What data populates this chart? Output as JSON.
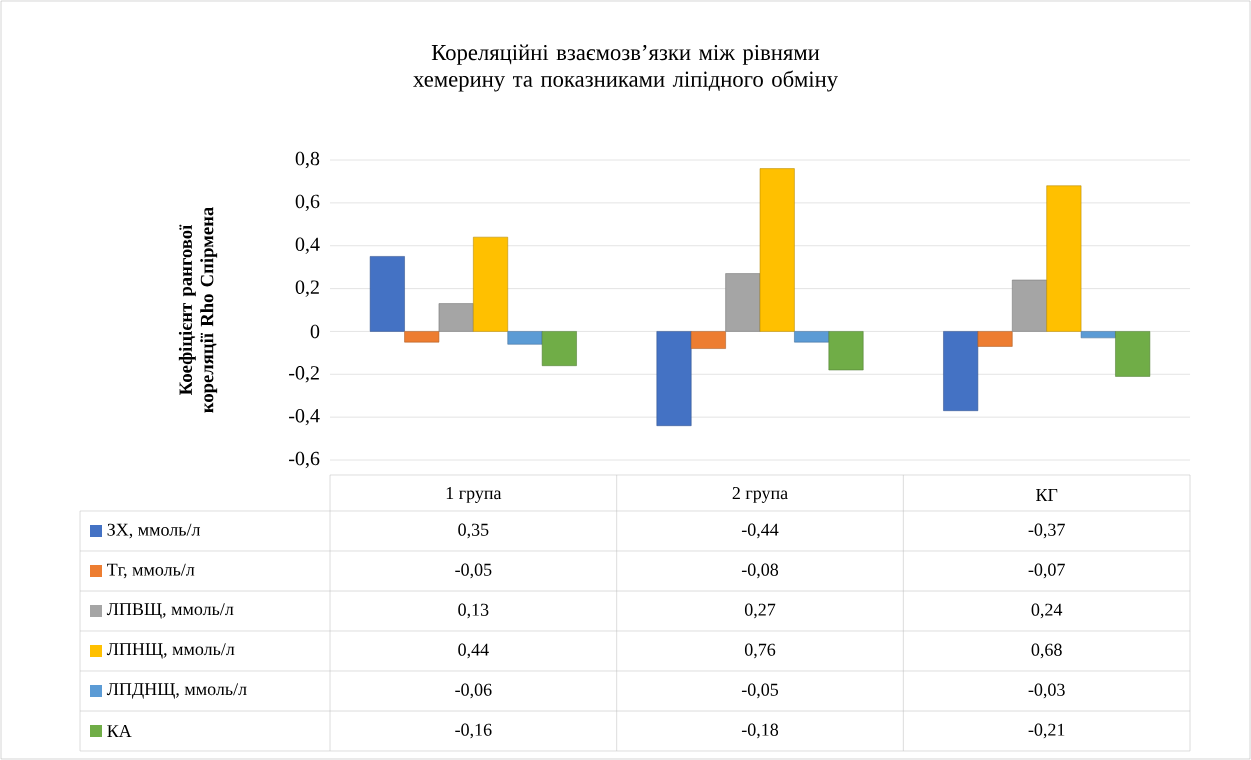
{
  "chart_data": {
    "type": "bar",
    "title": "Кореляційні взаємозв’язки між рівнями хемерину та показниками ліпідного обміну",
    "ylabel": "Коефіцієнт рангової кореляції Rho Спірмена",
    "categories": [
      "1 група",
      "2 група",
      "КГ"
    ],
    "series": [
      {
        "name": "ЗХ, ммоль/л",
        "color": "#4472c4",
        "values": [
          0.35,
          -0.44,
          -0.37
        ],
        "value_labels": [
          "0,35",
          "-0,44",
          "-0,37"
        ]
      },
      {
        "name": "Тг, ммоль/л",
        "color": "#ed7d31",
        "values": [
          -0.05,
          -0.08,
          -0.07
        ],
        "value_labels": [
          "-0,05",
          "-0,08",
          "-0,07"
        ]
      },
      {
        "name": "ЛПВЩ, ммоль/л",
        "color": "#a5a5a5",
        "values": [
          0.13,
          0.27,
          0.24
        ],
        "value_labels": [
          "0,13",
          "0,27",
          "0,24"
        ]
      },
      {
        "name": "ЛПНЩ, ммоль/л",
        "color": "#ffc000",
        "values": [
          0.44,
          0.76,
          0.68
        ],
        "value_labels": [
          "0,44",
          "0,76",
          "0,68"
        ]
      },
      {
        "name": "ЛПДНЩ, ммоль/л",
        "color": "#5b9bd5",
        "values": [
          -0.06,
          -0.05,
          -0.03
        ],
        "value_labels": [
          "-0,06",
          "-0,05",
          "-0,03"
        ]
      },
      {
        "name": "КА",
        "color": "#70ad47",
        "values": [
          -0.16,
          -0.18,
          -0.21
        ],
        "value_labels": [
          "-0,16",
          "-0,18",
          "-0,21"
        ]
      }
    ],
    "ylim": [
      -0.6,
      0.8
    ],
    "yticks": [
      {
        "value": -0.6,
        "label": "-0,6"
      },
      {
        "value": -0.4,
        "label": "-0,4"
      },
      {
        "value": -0.2,
        "label": "-0,2"
      },
      0,
      {
        "value": 0.2,
        "label": "0,2"
      },
      {
        "value": 0.4,
        "label": "0,4"
      },
      {
        "value": 0.6,
        "label": "0,6"
      },
      {
        "value": 0.8,
        "label": "0,8"
      }
    ],
    "grid": "y",
    "legend": "bottom"
  }
}
